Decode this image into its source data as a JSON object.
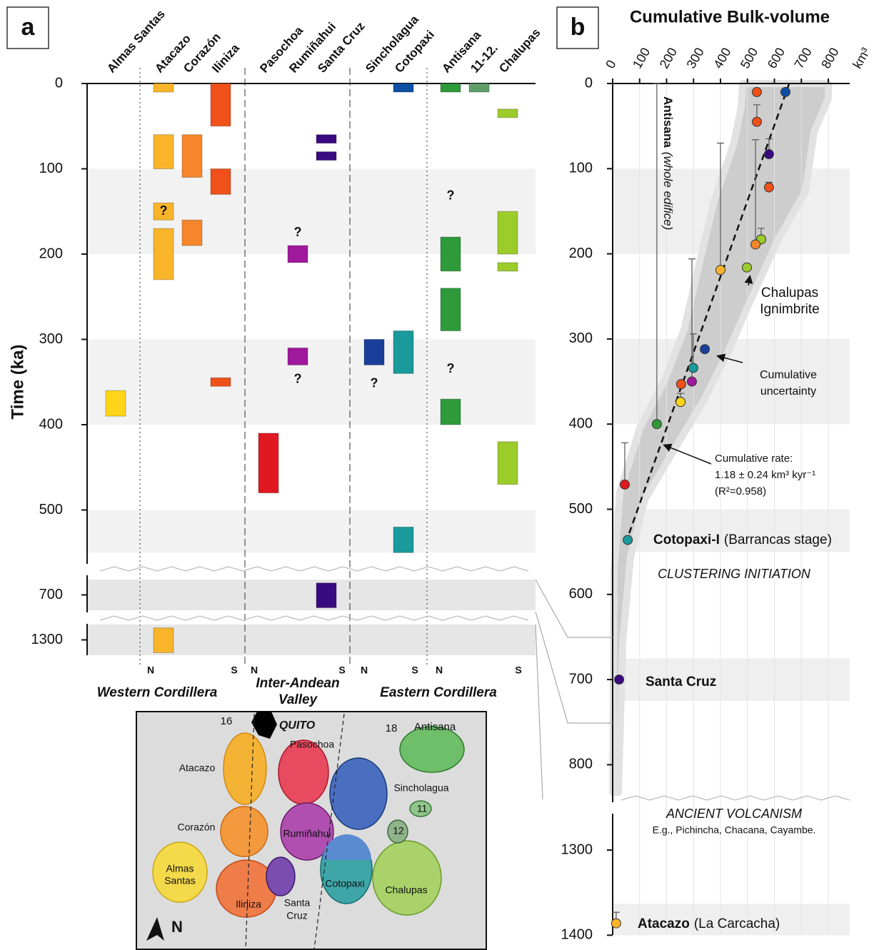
{
  "chart_data": [
    {
      "type": "range",
      "label": "a",
      "ylabel": "Time (ka)",
      "ylim": [
        0,
        1318
      ],
      "y_segments": [
        [
          0,
          550
        ],
        [
          682,
          718
        ],
        [
          1282,
          1318
        ]
      ],
      "yticks": [
        0,
        100,
        200,
        300,
        400,
        500,
        700,
        1300
      ],
      "bands": [
        [
          100,
          200
        ],
        [
          300,
          400
        ],
        [
          500,
          550
        ]
      ],
      "series": [
        {
          "name": "Almas Santas",
          "color": "#ffd51a",
          "ranges": [
            [
              360,
              390
            ]
          ]
        },
        {
          "name": "Atacazo",
          "color": "#f9b52a",
          "ranges": [
            [
              0,
              10
            ],
            [
              60,
              100
            ],
            [
              140,
              160
            ],
            [
              170,
              230
            ],
            [
              1286,
              1315
            ]
          ]
        },
        {
          "name": "Corazón",
          "color": "#f5862a",
          "ranges": [
            [
              60,
              110
            ],
            [
              160,
              190
            ]
          ]
        },
        {
          "name": "Iliniza",
          "color": "#f0501a",
          "ranges": [
            [
              0,
              50
            ],
            [
              100,
              130
            ],
            [
              345,
              355
            ]
          ]
        },
        {
          "name": "Pasochoa",
          "color": "#e01820",
          "ranges": [
            [
              410,
              480
            ]
          ]
        },
        {
          "name": "Rumiñahui",
          "color": "#a0189c",
          "ranges": [
            [
              190,
              210
            ],
            [
              310,
              330
            ]
          ]
        },
        {
          "name": "Santa Cruz",
          "color": "#3a0a80",
          "ranges": [
            [
              60,
              70
            ],
            [
              80,
              90
            ],
            [
              686,
              715
            ]
          ]
        },
        {
          "name": "Sincholagua",
          "color": "#1a3f9a",
          "ranges": [
            [
              300,
              330
            ]
          ]
        },
        {
          "name": "Cotopaxi",
          "color": "#1a9a9a",
          "ranges": [
            [
              0,
              10
            ],
            [
              290,
              340
            ],
            [
              520,
              550
            ]
          ],
          "range_colors": [
            "#0d4fa3",
            null,
            null
          ]
        },
        {
          "name": "Antisana",
          "color": "#2e9a3a",
          "ranges": [
            [
              0,
              10
            ],
            [
              180,
              220
            ],
            [
              240,
              290
            ],
            [
              370,
              400
            ]
          ]
        },
        {
          "name": "11-12.",
          "color": "#5e9e6a",
          "ranges": [
            [
              0,
              10
            ]
          ]
        },
        {
          "name": "Chalupas",
          "color": "#9ccc2a",
          "ranges": [
            [
              30,
              40
            ],
            [
              150,
              200
            ],
            [
              210,
              220
            ],
            [
              420,
              470
            ]
          ]
        }
      ],
      "annotations": [
        {
          "text": "?",
          "series": "Atacazo",
          "y": 150
        },
        {
          "text": "?",
          "series": "Rumiñahui",
          "y": 175
        },
        {
          "text": "?",
          "series": "Rumiñahui",
          "y": 347
        },
        {
          "text": "?",
          "series": "Sincholagua",
          "y": 352
        },
        {
          "text": "?",
          "series": "Antisana",
          "y": 132
        },
        {
          "text": "?",
          "series": "Antisana",
          "y": 335
        }
      ],
      "ns": [
        [
          "N",
          "S"
        ],
        [
          "N",
          "S"
        ],
        [
          "N",
          "S"
        ],
        [
          "N",
          "S"
        ]
      ],
      "regions": [
        [
          "Western Cordillera"
        ],
        [
          "Inter-Andean",
          "Valley"
        ],
        [
          "Eastern Cordillera"
        ]
      ]
    },
    {
      "type": "scatter",
      "label": "b",
      "title": "Cumulative Bulk-volume",
      "x_unit": "km³",
      "xlim": [
        0,
        800
      ],
      "xticks": [
        0,
        100,
        200,
        300,
        400,
        500,
        600,
        700,
        800
      ],
      "ylim": [
        0,
        1400
      ],
      "y_segments": [
        [
          0,
          850
        ],
        [
          1300,
          1400
        ]
      ],
      "yticks": [
        0,
        100,
        200,
        300,
        400,
        500,
        600,
        700,
        800,
        1300,
        1400
      ],
      "bands": [
        [
          100,
          200
        ],
        [
          300,
          400
        ],
        [
          500,
          550
        ],
        [
          675,
          725
        ],
        [
          1363,
          1400
        ]
      ],
      "x": [
        535,
        641,
        535,
        580,
        580,
        551,
        530,
        400,
        498,
        342,
        299,
        294,
        254,
        252,
        164,
        45,
        56,
        24,
        13
      ],
      "y": [
        10,
        10,
        45,
        83,
        122,
        183,
        189,
        219,
        216,
        312,
        334,
        350,
        353,
        374,
        400,
        471,
        536,
        700,
        1386
      ],
      "yerr": [
        null,
        null,
        20,
        18,
        6,
        13,
        123,
        149,
        null,
        null,
        40,
        144,
        null,
        10,
        400,
        49,
        null,
        null,
        13
      ],
      "colors": [
        "#f0501a",
        "#0d4fa3",
        "#f0501a",
        "#3a0a80",
        "#f0501a",
        "#9ccc2a",
        "#f5862a",
        "#f9b52a",
        "#9ccc2a",
        "#1a3f9a",
        "#1a9a9a",
        "#a0189c",
        "#f0501a",
        "#ffd51a",
        "#2e9a3a",
        "#e01820",
        "#1a9a9a",
        "#3a0a80",
        "#f9b52a"
      ],
      "fit": {
        "x": [
          48,
          655
        ],
        "y": [
          540,
          0
        ]
      },
      "annotations": [
        {
          "bold": "Antisana",
          "text": "(whole edifice)"
        },
        {
          "lines": [
            "Chalupas",
            "Ignimbrite"
          ]
        },
        {
          "lines": [
            "Cumulative",
            "uncertainty"
          ]
        },
        {
          "lines": [
            "Cumulative rate:",
            "1.18 ± 0.24 km³ kyr⁻¹",
            "(R²=0.958)"
          ]
        },
        {
          "bold": "Cotopaxi-I",
          "text": "(Barrancas stage)"
        },
        {
          "lines": [
            "CLUSTERING INITIATION"
          ]
        },
        {
          "bold": "Santa Cruz",
          "text": ""
        },
        {
          "lines": [
            "ANCIENT VOLCANISM",
            "E.g., Pichincha, Chacana, Cayambe."
          ]
        },
        {
          "bold": "Atacazo",
          "text": "(La Carcacha)"
        }
      ]
    }
  ],
  "map": {
    "labels": [
      "16",
      "QUITO",
      "18",
      "Antisana",
      "Pasochoa",
      "Atacazo",
      "Sincholagua",
      "11",
      "Corazón",
      "Rumiñahui",
      "12",
      "Almas",
      "Santas",
      "Cotopaxi",
      "Chalupas",
      "Iliniza",
      "Santa",
      "Cruz",
      "N"
    ]
  }
}
